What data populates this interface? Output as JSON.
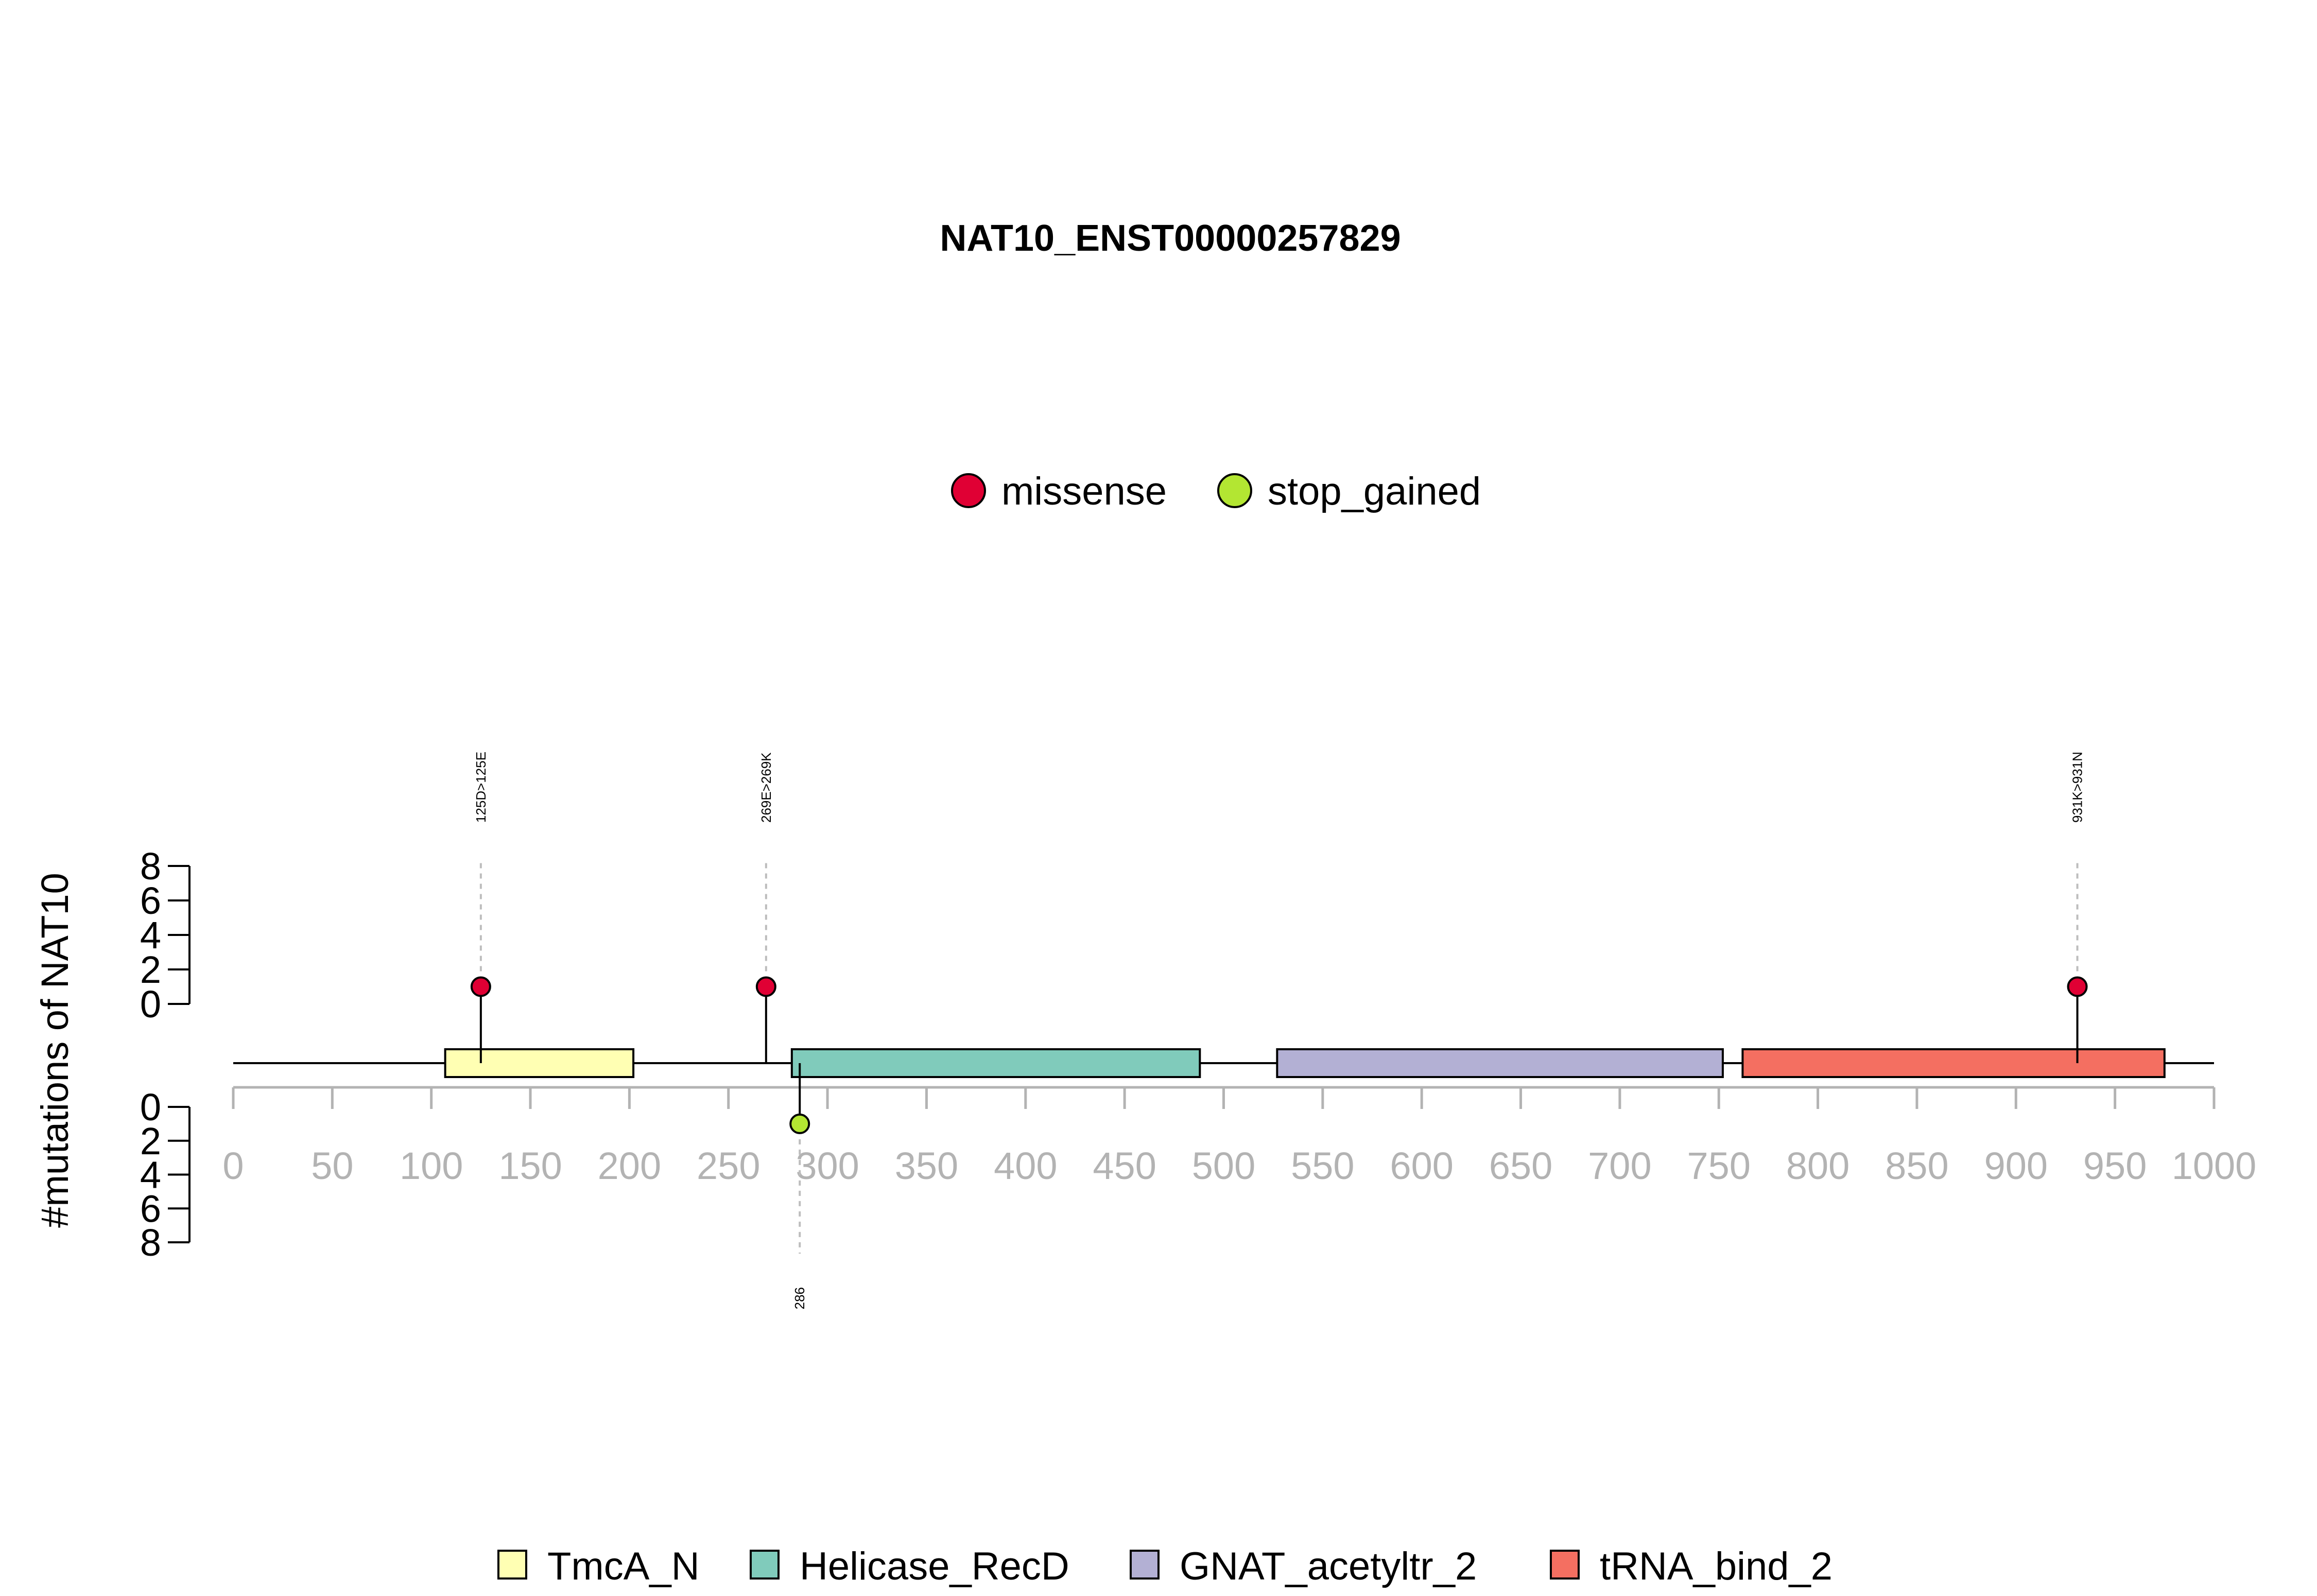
{
  "chart_data": {
    "type": "lollipop",
    "title": "NAT10_ENST00000257829",
    "ylabel": "#mutations of NAT10",
    "xlim": [
      0,
      1000
    ],
    "x_ticks": [
      0,
      50,
      100,
      150,
      200,
      250,
      300,
      350,
      400,
      450,
      500,
      550,
      600,
      650,
      700,
      750,
      800,
      850,
      900,
      950,
      1000
    ],
    "y_ticks_top": [
      0,
      2,
      4,
      6,
      8
    ],
    "y_ticks_bottom": [
      0,
      2,
      4,
      6,
      8
    ],
    "ylim": [
      0,
      8
    ],
    "mutation_legend": [
      {
        "name": "missense",
        "color": "#e00034"
      },
      {
        "name": "stop_gained",
        "color": "#b3e632"
      }
    ],
    "domains": [
      {
        "name": "TmcA_N",
        "start": 107,
        "end": 202,
        "color": "#ffffb3"
      },
      {
        "name": "Helicase_RecD",
        "start": 282,
        "end": 488,
        "color": "#80cbbb"
      },
      {
        "name": "GNAT_acetyltr_2",
        "start": 527,
        "end": 752,
        "color": "#b3b0d4"
      },
      {
        "name": "tRNA_bind_2",
        "start": 762,
        "end": 975,
        "color": "#f46f61"
      }
    ],
    "mutations": [
      {
        "position": 125,
        "count": 1,
        "type": "missense",
        "label": "125D>125E",
        "side": "top"
      },
      {
        "position": 269,
        "count": 1,
        "type": "missense",
        "label": "269E>269K",
        "side": "top"
      },
      {
        "position": 931,
        "count": 1,
        "type": "missense",
        "label": "931K>931N",
        "side": "top"
      },
      {
        "position": 286,
        "count": 1,
        "type": "stop_gained",
        "label": "286",
        "side": "bottom"
      }
    ]
  }
}
